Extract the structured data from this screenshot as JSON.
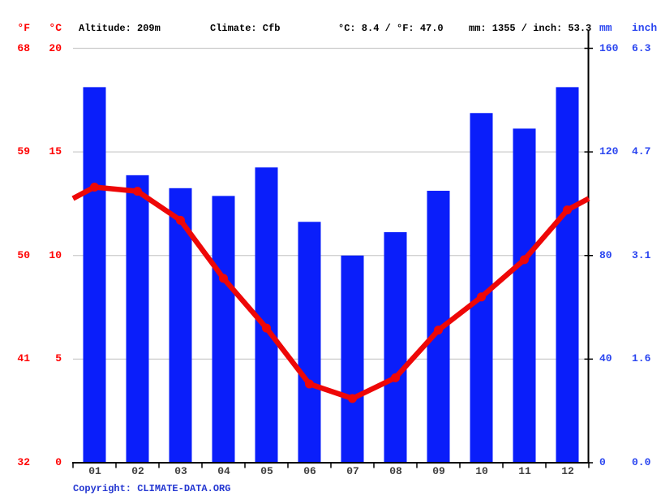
{
  "header": {
    "f_unit": "°F",
    "c_unit": "°C",
    "altitude": "Altitude: 209m",
    "climate": "Climate: Cfb",
    "avg_temp": "°C: 8.4 / °F: 47.0",
    "annual_precip": "mm: 1355 / inch: 53.3",
    "mm_unit": "mm",
    "inch_unit": "inch"
  },
  "footer": {
    "copyright_prefix": "Copyright: ",
    "copyright_link": "CLIMATE-DATA.ORG"
  },
  "colors": {
    "bar": "#0a1efa",
    "line": "#ee0707",
    "grid": "#cccccc",
    "axis": "#000000",
    "red_text": "#ff0000",
    "blue_text": "#2b46f0",
    "month_text": "#3f3f3f",
    "copyright_text": "#2336d1"
  },
  "chart_data": {
    "type": "bar",
    "title": "",
    "xlabel": "",
    "ylabel": "",
    "categories": [
      "01",
      "02",
      "03",
      "04",
      "05",
      "06",
      "07",
      "08",
      "09",
      "10",
      "11",
      "12"
    ],
    "series": [
      {
        "name": "precipitation",
        "type": "bar",
        "unit": "mm",
        "values": [
          145,
          111,
          106,
          103,
          114,
          93,
          80,
          89,
          105,
          135,
          129,
          145
        ]
      },
      {
        "name": "temperature",
        "type": "line",
        "unit": "°C",
        "values": [
          13.3,
          13.1,
          11.7,
          8.9,
          6.5,
          3.8,
          3.1,
          4.1,
          6.4,
          8.0,
          9.8,
          12.2
        ]
      }
    ],
    "axes": {
      "left_fahrenheit": {
        "ticks": [
          68,
          59,
          50,
          41,
          32
        ]
      },
      "left_celsius": {
        "ticks": [
          20,
          15,
          10,
          5,
          0
        ],
        "range": [
          0,
          20
        ]
      },
      "right_mm": {
        "ticks": [
          160,
          120,
          80,
          40,
          0
        ],
        "range": [
          0,
          160
        ]
      },
      "right_inch": {
        "ticks": [
          "6.3",
          "4.7",
          "3.1",
          "1.6",
          "0.0"
        ]
      }
    },
    "grid": true,
    "legend_position": "none"
  }
}
